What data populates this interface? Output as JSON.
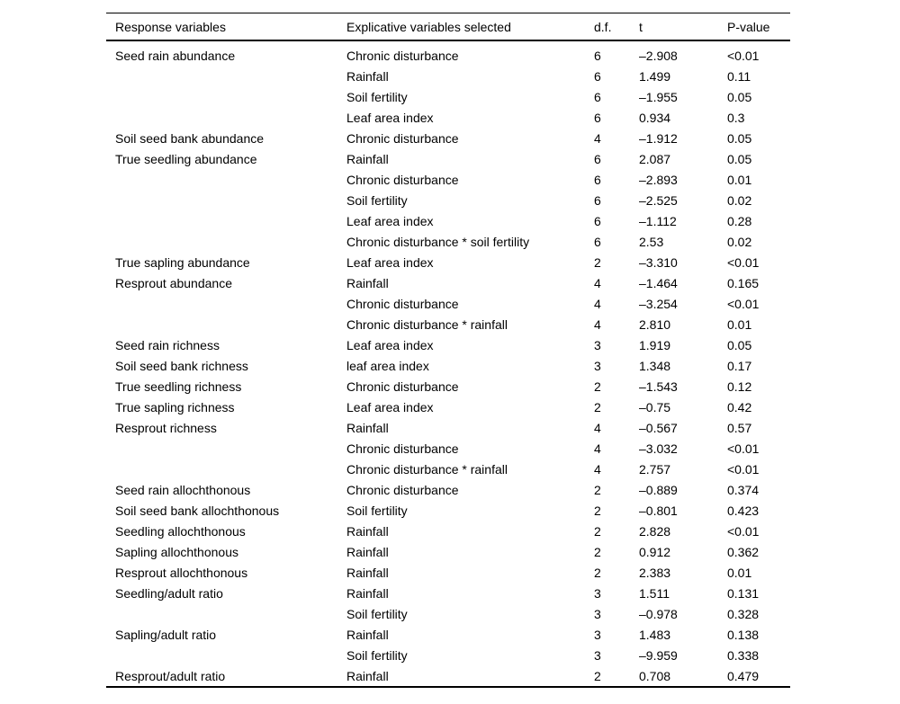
{
  "table": {
    "headers": [
      "Response variables",
      "Explicative variables selected",
      "d.f.",
      "t",
      "P-value"
    ],
    "rows": [
      [
        "Seed rain abundance",
        "Chronic disturbance",
        "6",
        "–2.908",
        "<0.01"
      ],
      [
        "",
        "Rainfall",
        "6",
        "1.499",
        "0.11"
      ],
      [
        "",
        "Soil fertility",
        "6",
        "–1.955",
        "0.05"
      ],
      [
        "",
        "Leaf area index",
        "6",
        "0.934",
        "0.3"
      ],
      [
        "Soil seed bank abundance",
        "Chronic disturbance",
        "4",
        "–1.912",
        "0.05"
      ],
      [
        "True seedling abundance",
        "Rainfall",
        "6",
        "2.087",
        "0.05"
      ],
      [
        "",
        "Chronic disturbance",
        "6",
        "–2.893",
        "0.01"
      ],
      [
        "",
        "Soil fertility",
        "6",
        "–2.525",
        "0.02"
      ],
      [
        "",
        "Leaf area index",
        "6",
        "–1.112",
        "0.28"
      ],
      [
        "",
        "Chronic disturbance * soil fertility",
        "6",
        "2.53",
        "0.02"
      ],
      [
        "True sapling abundance",
        "Leaf area index",
        "2",
        "–3.310",
        "<0.01"
      ],
      [
        "Resprout abundance",
        "Rainfall",
        "4",
        "–1.464",
        "0.165"
      ],
      [
        "",
        "Chronic disturbance",
        "4",
        "–3.254",
        "<0.01"
      ],
      [
        "",
        "Chronic disturbance * rainfall",
        "4",
        "2.810",
        "0.01"
      ],
      [
        "Seed rain richness",
        "Leaf area index",
        "3",
        "1.919",
        "0.05"
      ],
      [
        "Soil seed bank richness",
        "leaf area index",
        "3",
        "1.348",
        "0.17"
      ],
      [
        "True seedling richness",
        "Chronic disturbance",
        "2",
        "–1.543",
        "0.12"
      ],
      [
        "True sapling richness",
        "Leaf area index",
        "2",
        "–0.75",
        "0.42"
      ],
      [
        "Resprout richness",
        "Rainfall",
        "4",
        "–0.567",
        "0.57"
      ],
      [
        "",
        "Chronic disturbance",
        "4",
        "–3.032",
        "<0.01"
      ],
      [
        "",
        "Chronic disturbance * rainfall",
        "4",
        "2.757",
        "<0.01"
      ],
      [
        "Seed rain allochthonous",
        "Chronic disturbance",
        "2",
        "–0.889",
        "0.374"
      ],
      [
        "Soil seed bank allochthonous",
        "Soil fertility",
        "2",
        "–0.801",
        "0.423"
      ],
      [
        "Seedling allochthonous",
        "Rainfall",
        "2",
        "2.828",
        "<0.01"
      ],
      [
        "Sapling allochthonous",
        "Rainfall",
        "2",
        "0.912",
        "0.362"
      ],
      [
        "Resprout allochthonous",
        "Rainfall",
        "2",
        "2.383",
        "0.01"
      ],
      [
        "Seedling/adult ratio",
        "Rainfall",
        "3",
        "1.511",
        "0.131"
      ],
      [
        "",
        "Soil fertility",
        "3",
        "–0.978",
        "0.328"
      ],
      [
        "Sapling/adult ratio",
        "Rainfall",
        "3",
        "1.483",
        "0.138"
      ],
      [
        "",
        "Soil fertility",
        "3",
        "–9.959",
        "0.338"
      ],
      [
        "Resprout/adult ratio",
        "Rainfall",
        "2",
        "0.708",
        "0.479"
      ]
    ]
  },
  "colors": {
    "background": "#ffffff",
    "text": "#000000",
    "rule": "#000000"
  }
}
